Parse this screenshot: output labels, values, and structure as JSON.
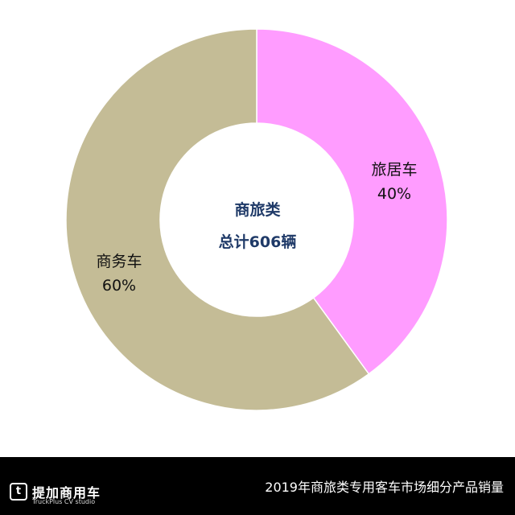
{
  "chart_data": {
    "type": "pie",
    "variant": "donut",
    "categories": [
      "旅居车",
      "商务车"
    ],
    "values": [
      40,
      60
    ],
    "value_unit": "%",
    "labels": [
      "40%",
      "60%"
    ],
    "colors": [
      "#ff9cff",
      "#c4bc96"
    ],
    "center": {
      "line1": "商旅类",
      "line2": "总计606辆"
    },
    "title": "2019年商旅类专用客车市场细分产品销量"
  },
  "footer": {
    "brand_name": "提加商用车",
    "brand_sub": "TruckPlus CV studio",
    "brand_mark": "t"
  }
}
